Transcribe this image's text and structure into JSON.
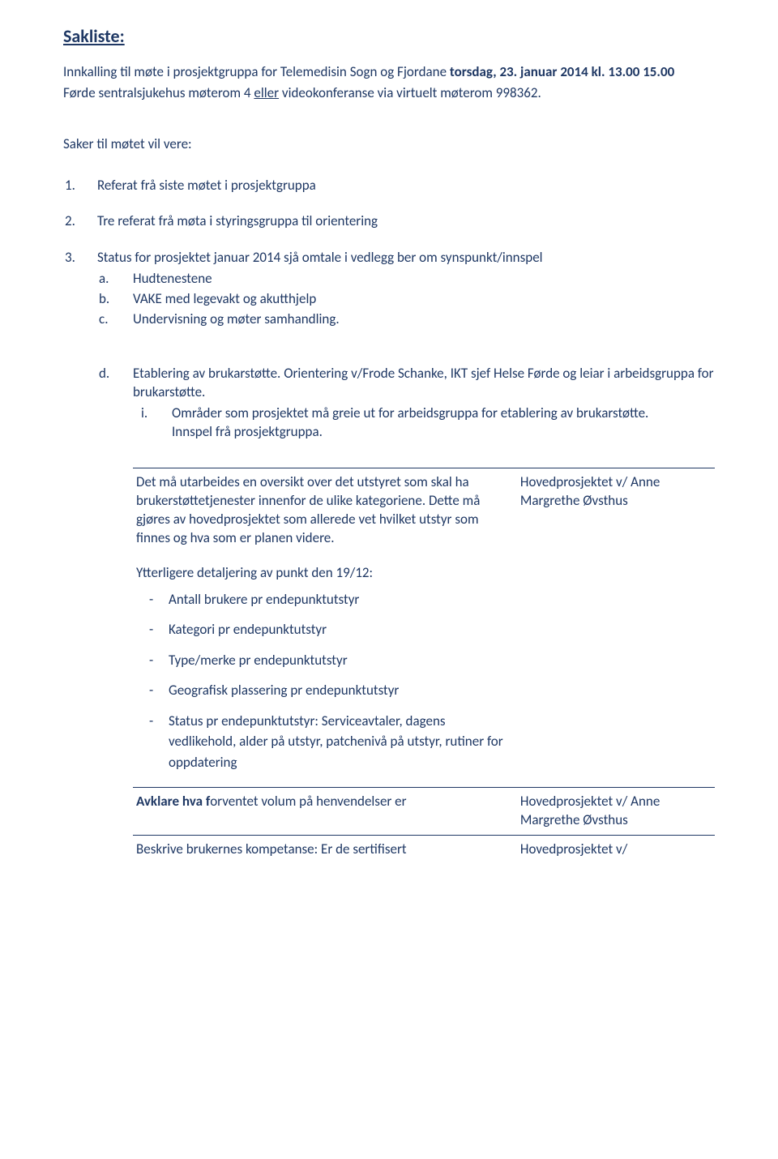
{
  "colors": {
    "text": "#1f3864",
    "background": "#ffffff",
    "rule": "#1f3864"
  },
  "typography": {
    "body_fontsize": 17,
    "title_fontsize": 22,
    "line_height": 1.35
  },
  "title": "Sakliste:",
  "intro": {
    "line1_pre": "Innkalling til møte i prosjektgruppa for Telemedisin Sogn og Fjordane ",
    "line1_bold": "torsdag, 23. januar 2014 kl. 13.00 15.00",
    "line2_pre": "Førde sentralsjukehus møterom 4 ",
    "line2_under": "eller",
    "line2_post": " videokonferanse via virtuelt møterom 998362."
  },
  "saker_head": "Saker til møtet vil vere:",
  "items": [
    {
      "num": "1.",
      "text": "Referat frå siste møtet i prosjektgruppa"
    },
    {
      "num": "2.",
      "text": "Tre referat frå møta i styringsgruppa til orientering"
    },
    {
      "num": "3.",
      "text": "Status for prosjektet januar 2014 sjå omtale i vedlegg ber om synspunkt/innspel"
    }
  ],
  "sub_abc": [
    {
      "letter": "a.",
      "text": "Hudtenestene"
    },
    {
      "letter": "b.",
      "text": "VAKE med legevakt og akutthjelp"
    },
    {
      "letter": "c.",
      "text": "Undervisning og møter samhandling."
    }
  ],
  "d_item": {
    "letter": "d.",
    "text": "Etablering av brukarstøtte. Orientering v/Frode Schanke, IKT sjef Helse Førde og leiar i arbeidsgruppa for brukarstøtte.",
    "i_mark": "i.",
    "i_text": "Områder som prosjektet må greie ut for arbeidsgruppa for etablering av brukarstøtte.",
    "i_line2": "Innspel frå prosjektgruppa."
  },
  "table": {
    "row1": {
      "left_para": "Det må utarbeides en oversikt over det utstyret som skal ha brukerstøttetjenester innenfor de ulike kategoriene. Dette må gjøres av hovedprosjektet som allerede vet hvilket utstyr som finnes og hva som er planen videre.",
      "detail_head": "Ytterligere detaljering av punkt den 19/12:",
      "bullets": [
        "Antall brukere pr endepunktutstyr",
        "Kategori pr endepunktutstyr",
        "Type/merke pr endepunktutstyr",
        "Geografisk plassering pr endepunktutstyr",
        "Status pr endepunktutstyr: Serviceavtaler, dagens vedlikehold, alder på utstyr, patchenivå på utstyr, rutiner for oppdatering"
      ],
      "right": "Hovedprosjektet v/ Anne Margrethe Øvsthus"
    },
    "row2": {
      "left_bold": "Avklare hva f",
      "left_rest": "orventet volum på henvendelser er",
      "right": "Hovedprosjektet v/ Anne Margrethe Øvsthus"
    },
    "row3": {
      "left": "Beskrive brukernes kompetanse: Er de sertifisert",
      "right": "Hovedprosjektet v/"
    }
  }
}
